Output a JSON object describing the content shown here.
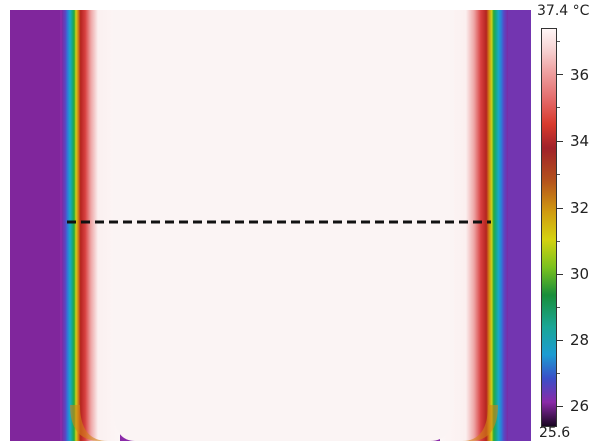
{
  "image": {
    "description_icon": "thermal-camera-image",
    "colors": {
      "background_purple": "#8a2aa8",
      "hot_center": "#fbf4f4",
      "edge_red": "#c8211f"
    }
  },
  "scale": {
    "max_label": "37.4 °C",
    "min_label": "25.6",
    "ticks": [
      "36",
      "34",
      "32",
      "30",
      "28",
      "26"
    ]
  },
  "profile_line": {
    "style": "dashed",
    "color": "#111111"
  }
}
